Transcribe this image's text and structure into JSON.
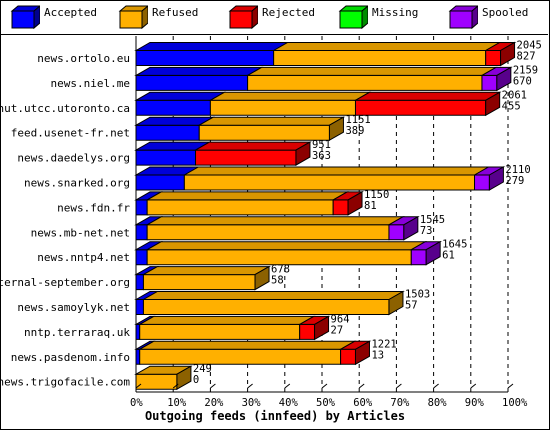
{
  "legend": [
    {
      "name": "Accepted",
      "color": "#0000ff"
    },
    {
      "name": "Refused",
      "color": "#ffb000"
    },
    {
      "name": "Rejected",
      "color": "#ff0000"
    },
    {
      "name": "Missing",
      "color": "#00ff00"
    },
    {
      "name": "Spooled",
      "color": "#a000ff"
    }
  ],
  "chart_data": {
    "type": "bar",
    "orientation": "horizontal",
    "stacked": true,
    "xlabel": "Outgoing feeds (innfeed) by Articles",
    "xlim": [
      0,
      100
    ],
    "x_ticks": [
      "0%",
      "10%",
      "20%",
      "30%",
      "40%",
      "50%",
      "60%",
      "70%",
      "80%",
      "90%",
      "100%"
    ],
    "categories": [
      "news.ortolo.eu",
      "news.niel.me",
      "nut.utcc.utoronto.ca",
      "feed.usenet-fr.net",
      "news.daedelys.org",
      "news.snarked.org",
      "news.fdn.fr",
      "news.mb-net.net",
      "news.nntp4.net",
      "eternal-september.org",
      "news.samoylyk.net",
      "nntp.terraraq.uk",
      "news.pasdenom.info",
      "news.trigofacile.com"
    ],
    "offered": [
      2045,
      2159,
      2061,
      1151,
      951,
      2110,
      1150,
      1545,
      1645,
      678,
      1503,
      964,
      1221,
      249
    ],
    "accepted": [
      827,
      670,
      455,
      389,
      363,
      279,
      81,
      73,
      61,
      58,
      57,
      27,
      13,
      0
    ],
    "series": [
      {
        "name": "Accepted",
        "values": [
          37,
          30,
          20,
          17,
          16,
          13,
          3,
          3,
          3,
          2,
          2,
          1,
          1,
          0
        ]
      },
      {
        "name": "Refused",
        "values": [
          57,
          63,
          39,
          35,
          0,
          78,
          50,
          65,
          71,
          30,
          66,
          43,
          54,
          11
        ]
      },
      {
        "name": "Rejected",
        "values": [
          4,
          0,
          35,
          0,
          27,
          0,
          4,
          0,
          0,
          0,
          0,
          4,
          4,
          0
        ]
      },
      {
        "name": "Missing",
        "values": [
          0,
          0,
          0,
          0,
          0,
          0,
          0,
          0,
          0,
          0,
          0,
          0,
          0,
          0
        ]
      },
      {
        "name": "Spooled",
        "values": [
          0,
          4,
          0,
          0,
          0,
          4,
          0,
          4,
          4,
          0,
          0,
          0,
          0,
          0
        ]
      }
    ],
    "grid": true,
    "legend_position": "top"
  }
}
